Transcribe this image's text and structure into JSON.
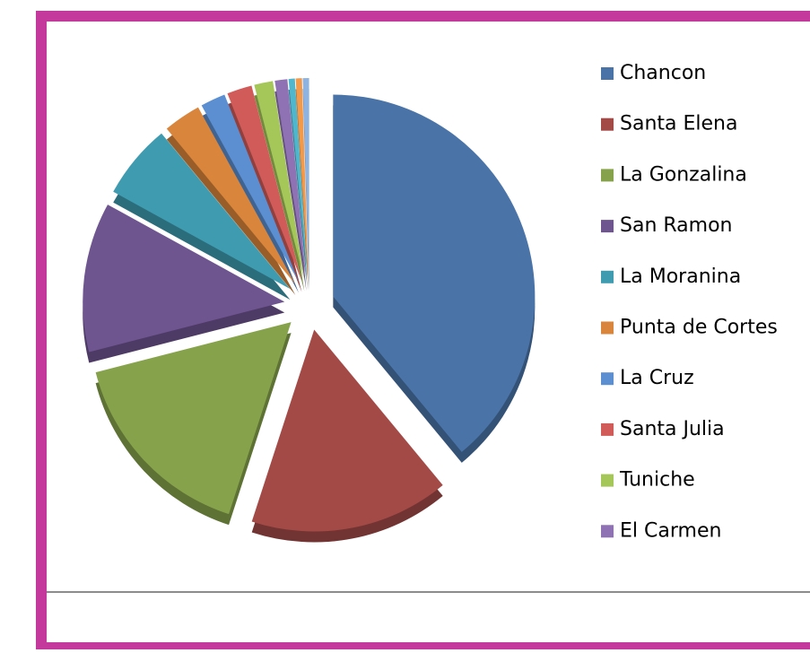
{
  "chart_data": {
    "type": "pie",
    "categories": [
      "Chancon",
      "Santa Elena",
      "La Gonzalina",
      "San Ramon",
      "La Moranina",
      "Punta de Cortes",
      "La Cruz",
      "Santa Julia",
      "Tuniche",
      "El Carmen",
      null,
      null,
      null
    ],
    "values": [
      39,
      16,
      16,
      12,
      6,
      3,
      2,
      2,
      1.5,
      1,
      0.5,
      0.5,
      0.5
    ],
    "colors": [
      "#4a74a8",
      "#a34a47",
      "#86a34b",
      "#6e5590",
      "#3f9bb0",
      "#d9853b",
      "#5b8fd1",
      "#d15b58",
      "#a5c75a",
      "#8f72b3",
      "#4fb6cc",
      "#f29a4a",
      "#8fb3e0"
    ],
    "legend": "right"
  }
}
